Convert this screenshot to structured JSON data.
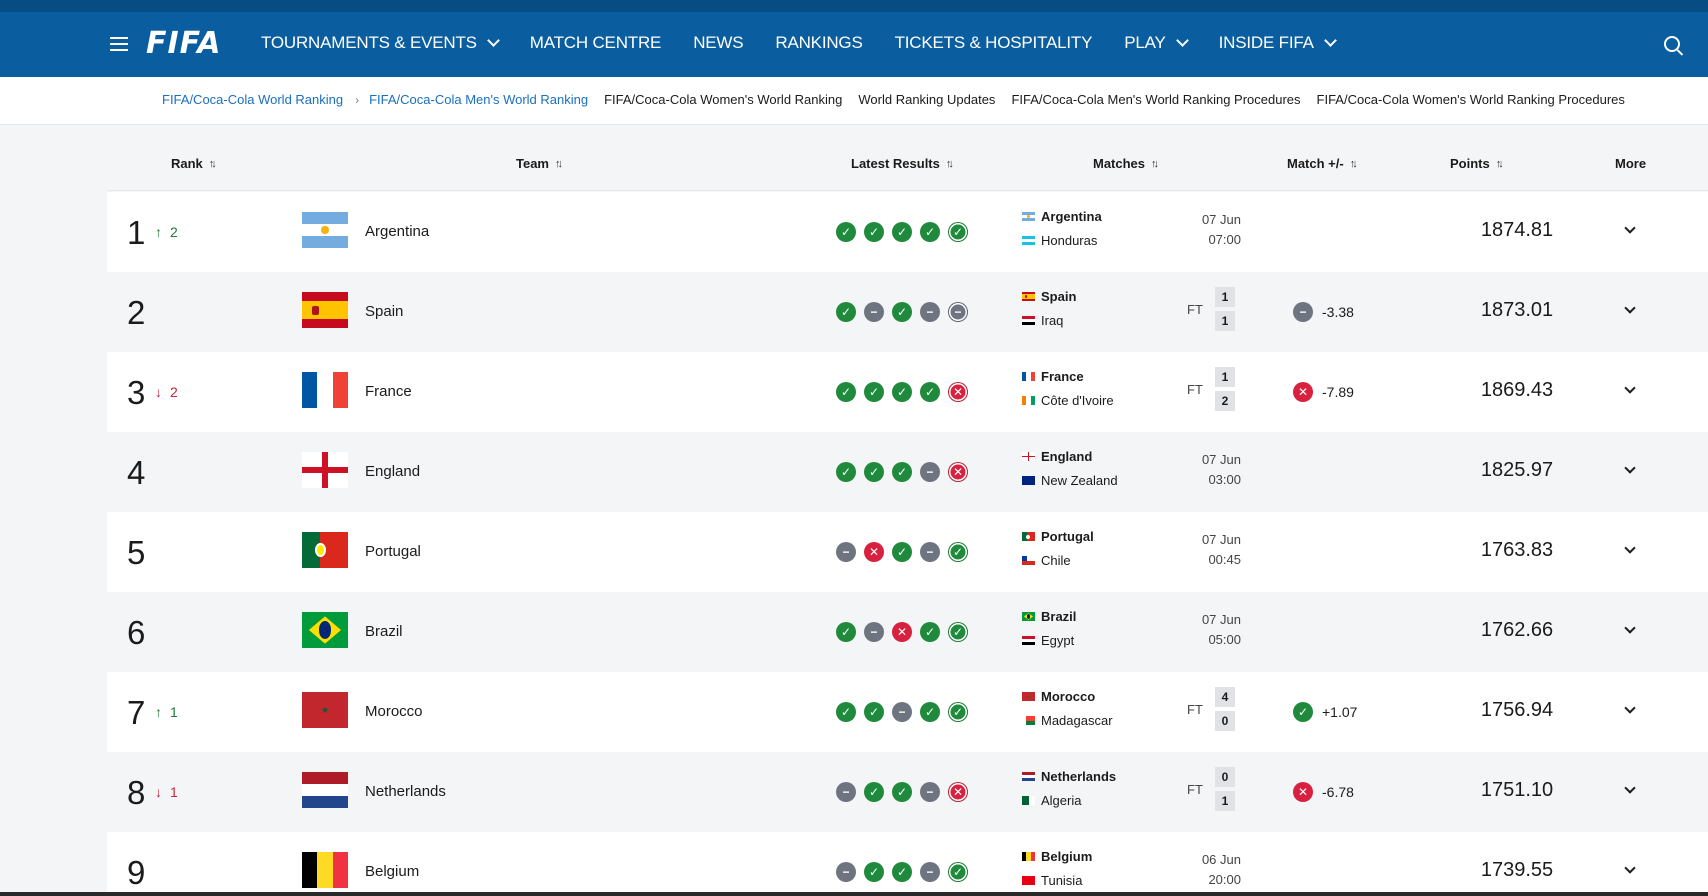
{
  "header": {
    "logo": "FIFA",
    "nav": [
      {
        "label": "TOURNAMENTS & EVENTS",
        "dropdown": true
      },
      {
        "label": "MATCH CENTRE",
        "dropdown": false
      },
      {
        "label": "NEWS",
        "dropdown": false
      },
      {
        "label": "RANKINGS",
        "dropdown": false
      },
      {
        "label": "TICKETS & HOSPITALITY",
        "dropdown": false
      },
      {
        "label": "PLAY",
        "dropdown": true
      },
      {
        "label": "INSIDE FIFA",
        "dropdown": true
      }
    ]
  },
  "subnav": {
    "breadcrumb_root": "FIFA/Coca-Cola World Ranking",
    "breadcrumb_current": "FIFA/Coca-Cola Men's World Ranking",
    "links": [
      "FIFA/Coca-Cola Women's World Ranking",
      "World Ranking Updates",
      "FIFA/Coca-Cola Men's World Ranking Procedures",
      "FIFA/Coca-Cola Women's World Ranking Procedures"
    ]
  },
  "table": {
    "columns": {
      "rank": "Rank",
      "team": "Team",
      "results": "Latest Results",
      "matches": "Matches",
      "match_pm": "Match +/-",
      "points": "Points",
      "more": "More"
    },
    "rows": [
      {
        "rank": "1",
        "move_dir": "up",
        "move": "2",
        "team": "Argentina",
        "flag": "ARG",
        "results": [
          "W",
          "W",
          "W",
          "W",
          "W"
        ],
        "home": "Argentina",
        "home_flag": "ARG",
        "away": "Honduras",
        "away_flag": "HON",
        "status": "scheduled",
        "date": "07 Jun",
        "time": "07:00",
        "points": "1874.81"
      },
      {
        "rank": "2",
        "move_dir": "",
        "move": "",
        "team": "Spain",
        "flag": "ESP",
        "results": [
          "W",
          "D",
          "W",
          "D",
          "D"
        ],
        "home": "Spain",
        "home_flag": "ESP",
        "away": "Iraq",
        "away_flag": "IRQ",
        "status": "FT",
        "ft_label": "FT",
        "score_home": "1",
        "score_away": "1",
        "delta_result": "D",
        "delta": "-3.38",
        "points": "1873.01"
      },
      {
        "rank": "3",
        "move_dir": "down",
        "move": "2",
        "team": "France",
        "flag": "FRA",
        "results": [
          "W",
          "W",
          "W",
          "W",
          "L"
        ],
        "home": "France",
        "home_flag": "FRA",
        "away": "Côte d'Ivoire",
        "away_flag": "CIV",
        "status": "FT",
        "ft_label": "FT",
        "score_home": "1",
        "score_away": "2",
        "delta_result": "L",
        "delta": "-7.89",
        "points": "1869.43"
      },
      {
        "rank": "4",
        "move_dir": "",
        "move": "",
        "team": "England",
        "flag": "ENG",
        "results": [
          "W",
          "W",
          "W",
          "D",
          "L"
        ],
        "home": "England",
        "home_flag": "ENG",
        "away": "New Zealand",
        "away_flag": "NZL",
        "status": "scheduled",
        "date": "07 Jun",
        "time": "03:00",
        "points": "1825.97"
      },
      {
        "rank": "5",
        "move_dir": "",
        "move": "",
        "team": "Portugal",
        "flag": "POR",
        "results": [
          "D",
          "L",
          "W",
          "D",
          "W"
        ],
        "home": "Portugal",
        "home_flag": "POR",
        "away": "Chile",
        "away_flag": "CHI",
        "status": "scheduled",
        "date": "07 Jun",
        "time": "00:45",
        "points": "1763.83"
      },
      {
        "rank": "6",
        "move_dir": "",
        "move": "",
        "team": "Brazil",
        "flag": "BRA",
        "results": [
          "W",
          "D",
          "L",
          "W",
          "W"
        ],
        "home": "Brazil",
        "home_flag": "BRA",
        "away": "Egypt",
        "away_flag": "EGY",
        "status": "scheduled",
        "date": "07 Jun",
        "time": "05:00",
        "points": "1762.66"
      },
      {
        "rank": "7",
        "move_dir": "up",
        "move": "1",
        "team": "Morocco",
        "flag": "MAR",
        "results": [
          "W",
          "W",
          "D",
          "W",
          "W"
        ],
        "home": "Morocco",
        "home_flag": "MAR",
        "away": "Madagascar",
        "away_flag": "MAD",
        "status": "FT",
        "ft_label": "FT",
        "score_home": "4",
        "score_away": "0",
        "delta_result": "W",
        "delta": "+1.07",
        "points": "1756.94"
      },
      {
        "rank": "8",
        "move_dir": "down",
        "move": "1",
        "team": "Netherlands",
        "flag": "NED",
        "results": [
          "D",
          "W",
          "W",
          "D",
          "L"
        ],
        "home": "Netherlands",
        "home_flag": "NED",
        "away": "Algeria",
        "away_flag": "ALG",
        "status": "FT",
        "ft_label": "FT",
        "score_home": "0",
        "score_away": "1",
        "delta_result": "L",
        "delta": "-6.78",
        "points": "1751.10"
      },
      {
        "rank": "9",
        "move_dir": "",
        "move": "",
        "team": "Belgium",
        "flag": "BEL",
        "results": [
          "D",
          "W",
          "W",
          "D",
          "W"
        ],
        "home": "Belgium",
        "home_flag": "BEL",
        "away": "Tunisia",
        "away_flag": "TUN",
        "status": "scheduled",
        "date": "06 Jun",
        "time": "20:00",
        "points": "1739.55"
      }
    ]
  },
  "colors": {
    "nav_bg": "#0a5d9f",
    "link": "#1a6fc0",
    "win": "#1f8a3c",
    "draw": "#6e7480",
    "loss": "#d7213f",
    "up": "#1f7a3a",
    "down": "#c8243a"
  },
  "icons": {
    "menu": "hamburger-icon",
    "search": "search-icon",
    "sort": "sort-arrows-icon",
    "expand": "chevron-down-icon",
    "breadcrumb": "chevron-right-icon"
  }
}
